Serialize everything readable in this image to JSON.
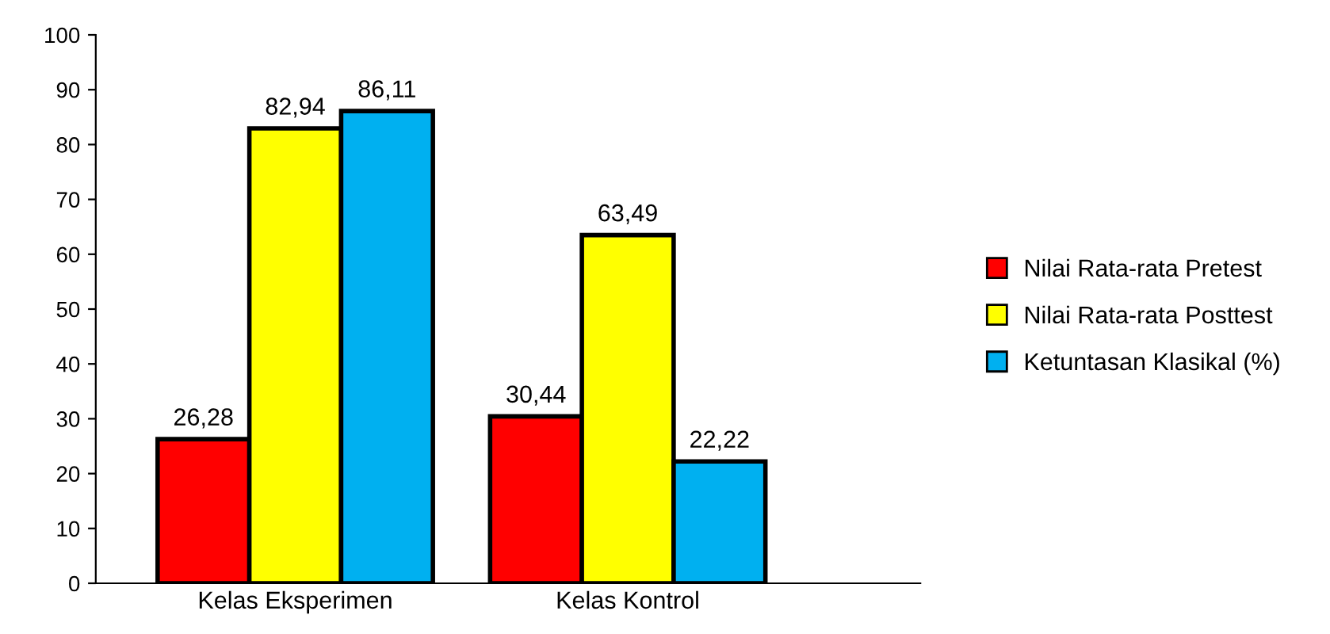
{
  "chart_data": {
    "type": "bar",
    "categories": [
      "Kelas Eksperimen",
      "Kelas Kontrol"
    ],
    "series": [
      {
        "name": "Nilai Rata-rata Pretest",
        "color": "#ff0000",
        "values": [
          26.28,
          30.44
        ],
        "value_labels": [
          "26,28",
          "30,44"
        ]
      },
      {
        "name": "Nilai Rata-rata Posttest",
        "color": "#ffff00",
        "values": [
          82.94,
          63.49
        ],
        "value_labels": [
          "82,94",
          "63,49"
        ]
      },
      {
        "name": "Ketuntasan Klasikal (%)",
        "color": "#00b0f0",
        "values": [
          86.11,
          22.22
        ],
        "value_labels": [
          "86,11",
          "22,22"
        ]
      }
    ],
    "ylim": [
      0,
      100
    ],
    "yticks": [
      0,
      10,
      20,
      30,
      40,
      50,
      60,
      70,
      80,
      90,
      100
    ],
    "grid": false,
    "legend": "right"
  }
}
